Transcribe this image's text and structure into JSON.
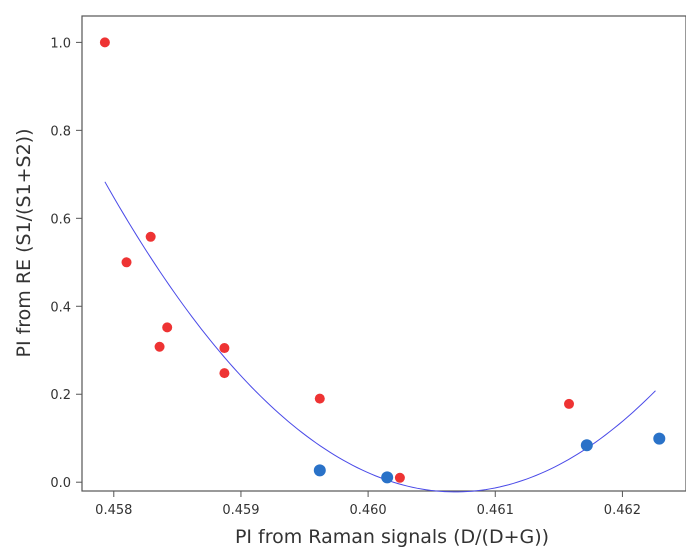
{
  "chart_data": {
    "type": "scatter",
    "xlabel": "PI from Raman signals (D/(D+G))",
    "ylabel": "PI from RE (S1/(S1+S2))",
    "xlim": [
      0.45775,
      0.4625
    ],
    "ylim": [
      -0.02,
      1.06
    ],
    "x_ticks": [
      0.458,
      0.459,
      0.46,
      0.461,
      0.462
    ],
    "x_tick_labels": [
      "0.458",
      "0.459",
      "0.460",
      "0.461",
      "0.462"
    ],
    "y_ticks": [
      0.0,
      0.2,
      0.4,
      0.6,
      0.8,
      1.0
    ],
    "y_tick_labels": [
      "0.0",
      "0.2",
      "0.4",
      "0.6",
      "0.8",
      "1.0"
    ],
    "grid": false,
    "series": [
      {
        "color": "#ee3333",
        "marker": "circle",
        "points": [
          [
            0.45793,
            1.0
          ],
          [
            0.4581,
            0.5
          ],
          [
            0.45829,
            0.558
          ],
          [
            0.45836,
            0.308
          ],
          [
            0.45842,
            0.352
          ],
          [
            0.45887,
            0.305
          ],
          [
            0.45887,
            0.248
          ],
          [
            0.45962,
            0.19
          ],
          [
            0.46025,
            0.01
          ],
          [
            0.46158,
            0.178
          ]
        ]
      },
      {
        "color": "#2a72c8",
        "marker": "circle",
        "points": [
          [
            0.45962,
            0.027
          ],
          [
            0.46015,
            0.011
          ],
          [
            0.46172,
            0.084
          ],
          [
            0.46229,
            0.099
          ]
        ]
      }
    ],
    "fit_curve": {
      "type": "quadratic",
      "color": "#4a4ae8",
      "x_range": [
        0.45793,
        0.46226
      ],
      "points": [
        [
          0.45793,
          0.683
        ],
        [
          0.46071,
          -0.022
        ],
        [
          0.46226,
          0.208
        ]
      ]
    }
  }
}
